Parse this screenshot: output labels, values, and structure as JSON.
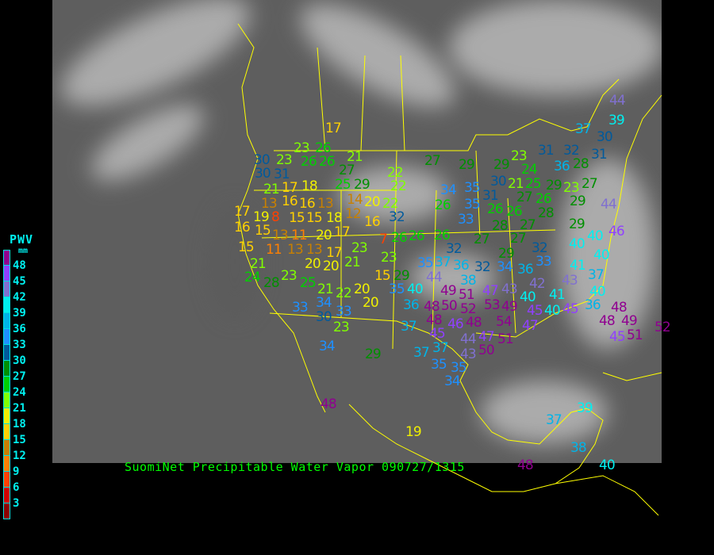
{
  "legend": {
    "title": "PWV",
    "unit": "mm",
    "labels": [
      "48",
      "45",
      "42",
      "39",
      "36",
      "33",
      "30",
      "27",
      "24",
      "21",
      "18",
      "15",
      "12",
      "9",
      "6",
      "3"
    ],
    "colors": [
      "#900090",
      "#9040ff",
      "#8070d0",
      "#00f0f0",
      "#00b4e8",
      "#1e90ff",
      "#005a9c",
      "#009000",
      "#00d000",
      "#80ff00",
      "#f0f000",
      "#ffd000",
      "#c88000",
      "#ff8000",
      "#ff4000",
      "#d00000",
      "#8b0000"
    ]
  },
  "caption": "SuomiNet Precipitable Water Vapor 090727/1315",
  "map": {
    "background": "#5e5e5e",
    "border_color": "#ffff00"
  },
  "stations": [
    23,
    26,
    30,
    23,
    26,
    26,
    21,
    27,
    30,
    31,
    22,
    21,
    17,
    18,
    25,
    29,
    14,
    16,
    13,
    16,
    13,
    18,
    12,
    20,
    22,
    17,
    19,
    8,
    15,
    15,
    17,
    32,
    16,
    20,
    16,
    15,
    13,
    11,
    13,
    7,
    26,
    17,
    15,
    11,
    13,
    20,
    20,
    23,
    21,
    23,
    21,
    24,
    28,
    23,
    25,
    15,
    29,
    21,
    22,
    20,
    35,
    40,
    20,
    33,
    34,
    33,
    30,
    23,
    36,
    37,
    39,
    37,
    30,
    27,
    29,
    29,
    23,
    24,
    31,
    32,
    28,
    31,
    36,
    21,
    25,
    34,
    35,
    26,
    31,
    30,
    27,
    26,
    29,
    23,
    27,
    35,
    26,
    33,
    28,
    29,
    44,
    26,
    28,
    27,
    27,
    29,
    26,
    26,
    32,
    27,
    40,
    46,
    37,
    29,
    32,
    40,
    40,
    35,
    36,
    32,
    34,
    33,
    36,
    41,
    38,
    44,
    43,
    37,
    49,
    51,
    47,
    43,
    42,
    48,
    50,
    52,
    40,
    41,
    40,
    48,
    53,
    49,
    48,
    54,
    45,
    40,
    45,
    36,
    48,
    46,
    47,
    45,
    44,
    47,
    48,
    49,
    51,
    50,
    45,
    51,
    52,
    37,
    43,
    17,
    22,
    44,
    34,
    29,
    35,
    35,
    34,
    48,
    19,
    39,
    37,
    38,
    40,
    48,
    37
  ]
}
